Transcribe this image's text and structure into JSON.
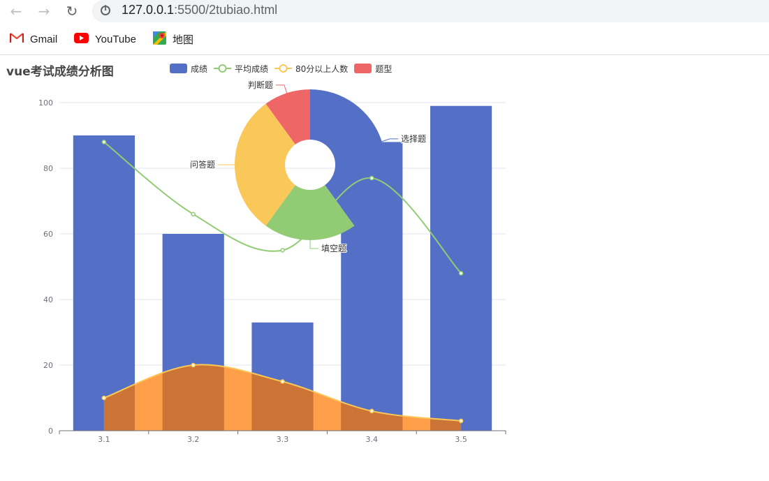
{
  "browser": {
    "url_host": "127.0.0.1",
    "url_rest": ":5500/2tubiao.html",
    "bookmarks": [
      {
        "label": "Gmail",
        "icon": "gmail-icon"
      },
      {
        "label": "YouTube",
        "icon": "youtube-icon"
      },
      {
        "label": "地图",
        "icon": "maps-icon"
      }
    ]
  },
  "colors": {
    "bar": "#5470c6",
    "avg_line": "#91cc75",
    "over80_line": "#fac858",
    "area_fill": "#ff9f4a",
    "area_dark": "#cc7435",
    "pie": [
      "#5470c6",
      "#91cc75",
      "#fac858",
      "#ee6666"
    ]
  },
  "chart_data": {
    "type": "bar",
    "title": "vue考试成绩分析图",
    "categories": [
      "3.1",
      "3.2",
      "3.3",
      "3.4",
      "3.5"
    ],
    "ylim": [
      0,
      100
    ],
    "yticks": [
      0,
      20,
      40,
      60,
      80,
      100
    ],
    "grid": true,
    "legend_position": "top",
    "legend": [
      "成绩",
      "平均成绩",
      "80分以上人数",
      "题型"
    ],
    "series": [
      {
        "name": "成绩",
        "type": "bar",
        "values": [
          90,
          60,
          33,
          88,
          99
        ]
      },
      {
        "name": "平均成绩",
        "type": "line",
        "values": [
          88,
          66,
          55,
          77,
          48
        ]
      },
      {
        "name": "80分以上人数",
        "type": "area",
        "values": [
          10,
          20,
          15,
          6,
          3
        ]
      }
    ],
    "pie": {
      "name": "题型",
      "type": "donut",
      "slices": [
        {
          "label": "选择题",
          "value": 40
        },
        {
          "label": "填空题",
          "value": 20
        },
        {
          "label": "问答题",
          "value": 30
        },
        {
          "label": "判断题",
          "value": 10
        }
      ]
    }
  }
}
